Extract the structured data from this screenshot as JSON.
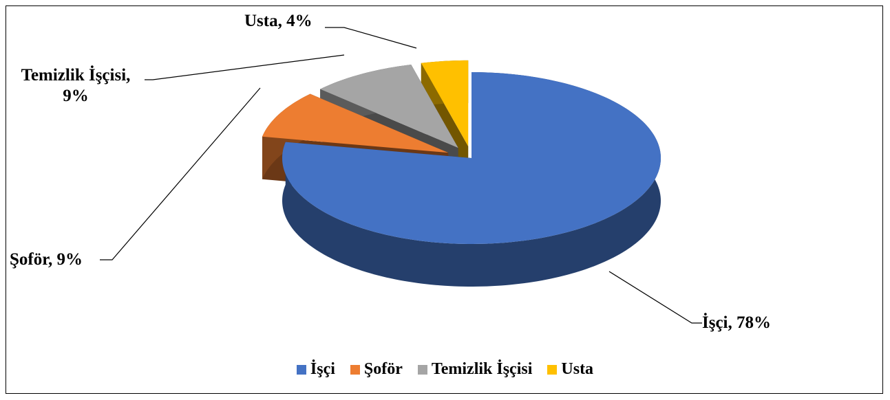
{
  "chart_data": {
    "type": "pie",
    "style": "3d exploded",
    "categories": [
      "İşçi",
      "Şoför",
      "Temizlik İşçisi",
      "Usta"
    ],
    "values": [
      78,
      9,
      9,
      4
    ],
    "value_labels": [
      "İşçi, 78%",
      "Şoför, 9%",
      "Temizlik İşçisi, 9%",
      "Usta, 4%"
    ],
    "colors": [
      "#4472c4",
      "#ed7d31",
      "#a5a5a5",
      "#ffc000"
    ],
    "legend": "bottom"
  }
}
